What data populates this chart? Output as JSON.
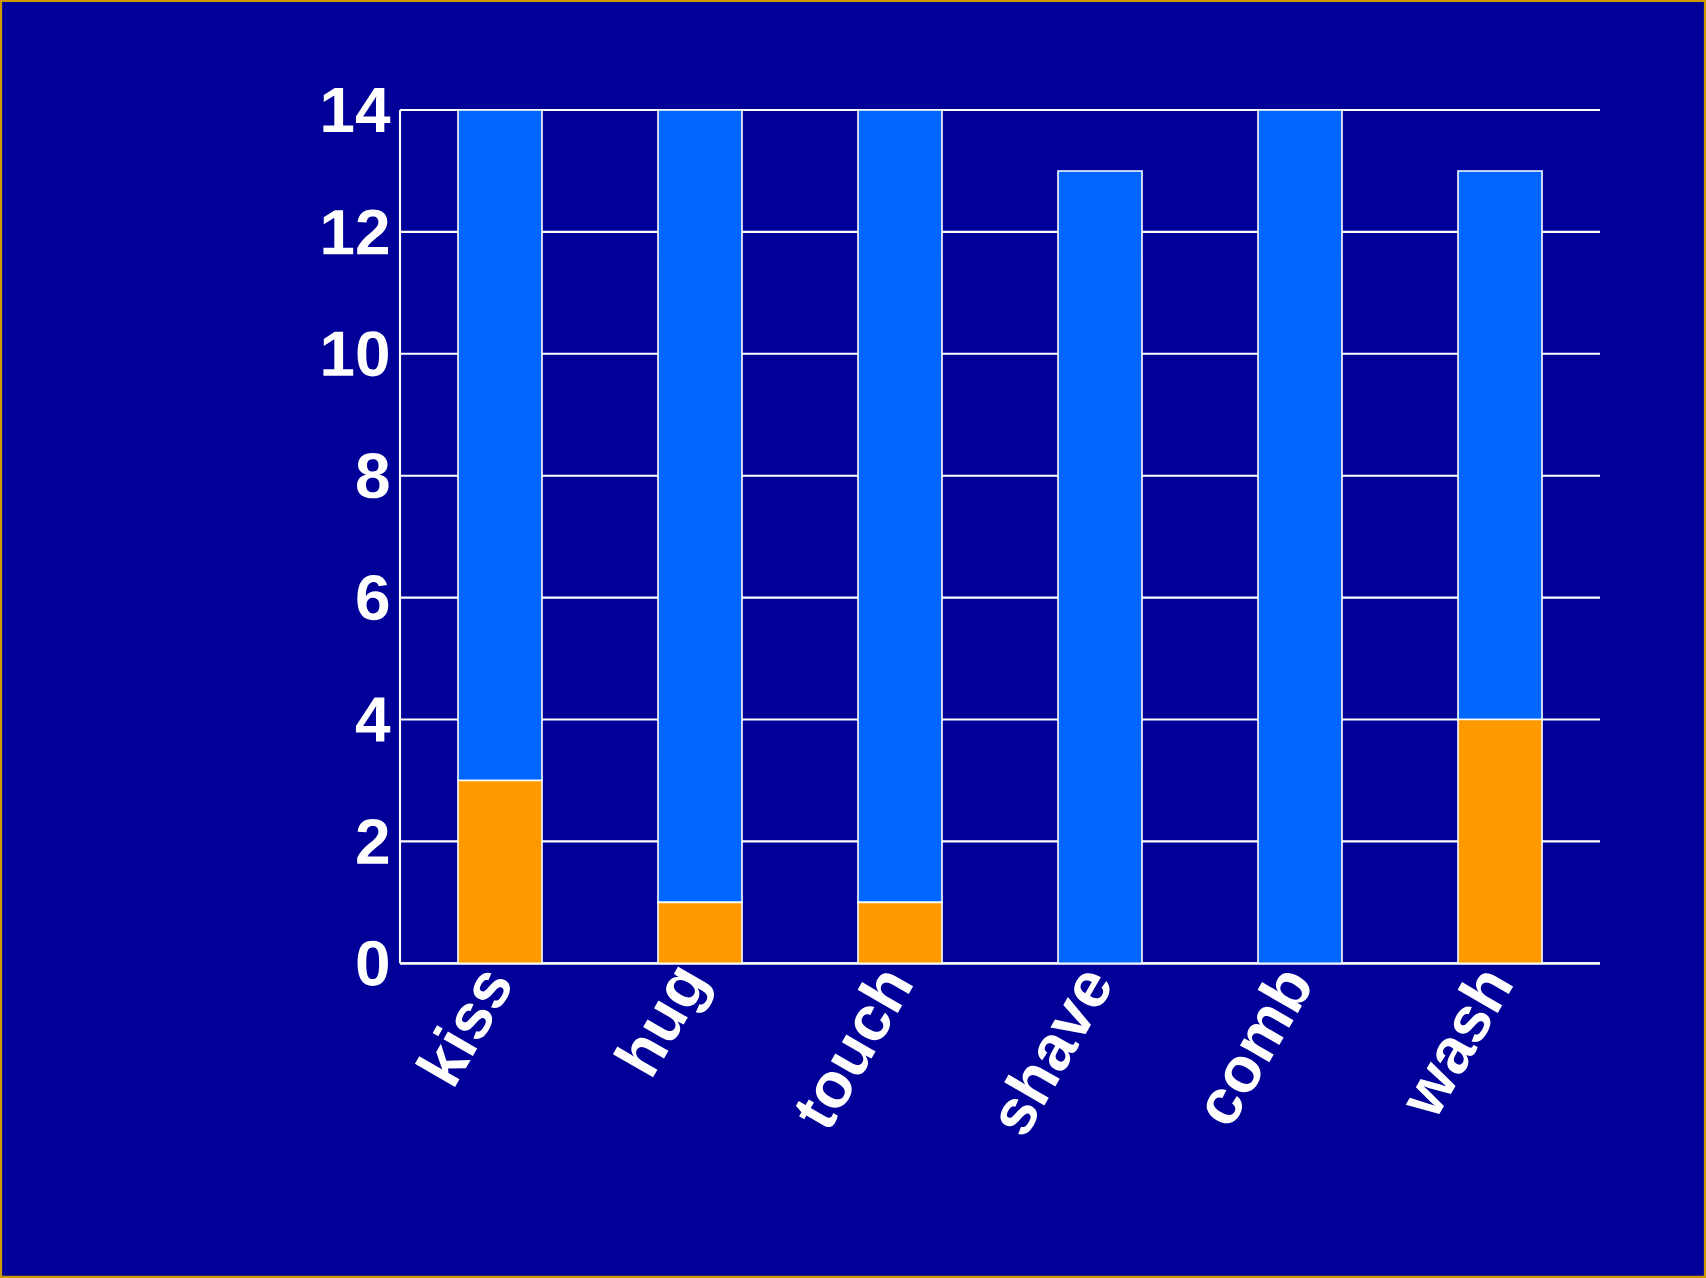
{
  "chart_data": {
    "type": "bar",
    "stacked": true,
    "categories": [
      "kiss",
      "hug",
      "touch",
      "shave",
      "comb",
      "wash"
    ],
    "series": [
      {
        "color": "#ff9900",
        "values": [
          3,
          1,
          1,
          0,
          0,
          4
        ]
      },
      {
        "color": "#0066ff",
        "values": [
          11,
          13,
          13,
          13,
          14,
          9
        ]
      }
    ],
    "ylim": [
      0,
      14
    ],
    "yticks": [
      0,
      2,
      4,
      6,
      8,
      10,
      12,
      14
    ],
    "grid": "y"
  }
}
